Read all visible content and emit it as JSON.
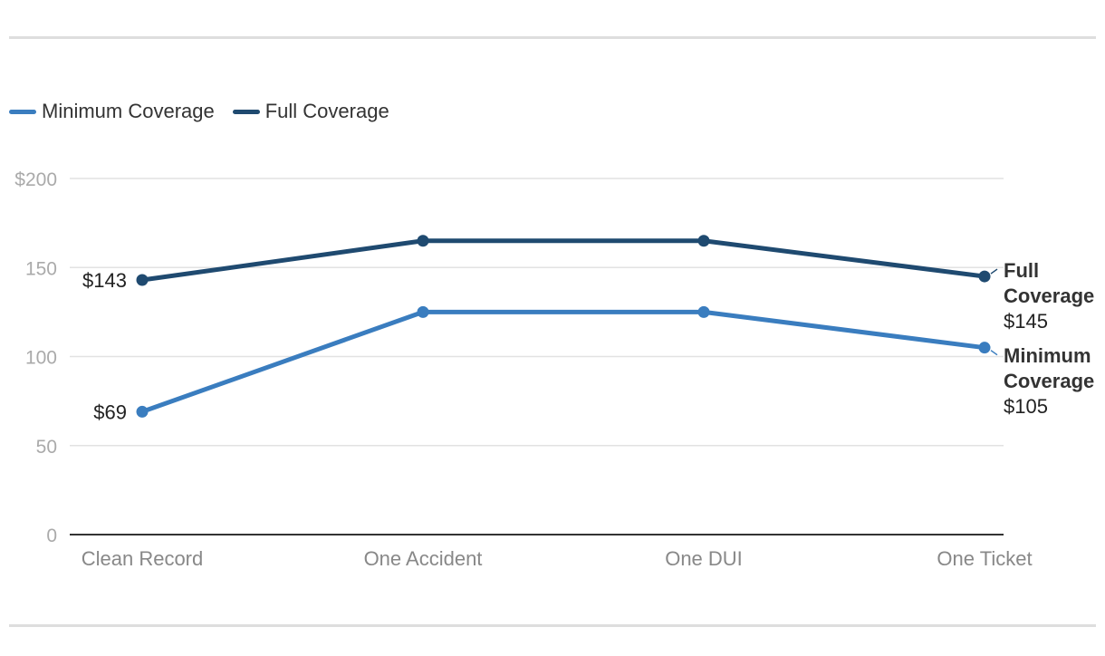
{
  "chart_data": {
    "type": "line",
    "categories": [
      "Clean Record",
      "One Accident",
      "One DUI",
      "One Ticket"
    ],
    "series": [
      {
        "name": "Minimum Coverage",
        "values": [
          69,
          125,
          125,
          105
        ],
        "color": "#3a7dbf"
      },
      {
        "name": "Full Coverage",
        "values": [
          143,
          165,
          165,
          145
        ],
        "color": "#1f4a70"
      }
    ],
    "ylim": [
      0,
      200
    ],
    "yticks": [
      0,
      50,
      100,
      150,
      200
    ],
    "ytick_labels": [
      "0",
      "50",
      "100",
      "150",
      "$200"
    ],
    "start_labels": [
      "$69",
      "$143"
    ],
    "end_labels": [
      {
        "name_lines": [
          "Minimum",
          "Coverage"
        ],
        "value": "$105"
      },
      {
        "name_lines": [
          "Full",
          "Coverage"
        ],
        "value": "$145"
      }
    ],
    "grid": true,
    "legend": "top-left",
    "xlabel": "",
    "ylabel": ""
  }
}
